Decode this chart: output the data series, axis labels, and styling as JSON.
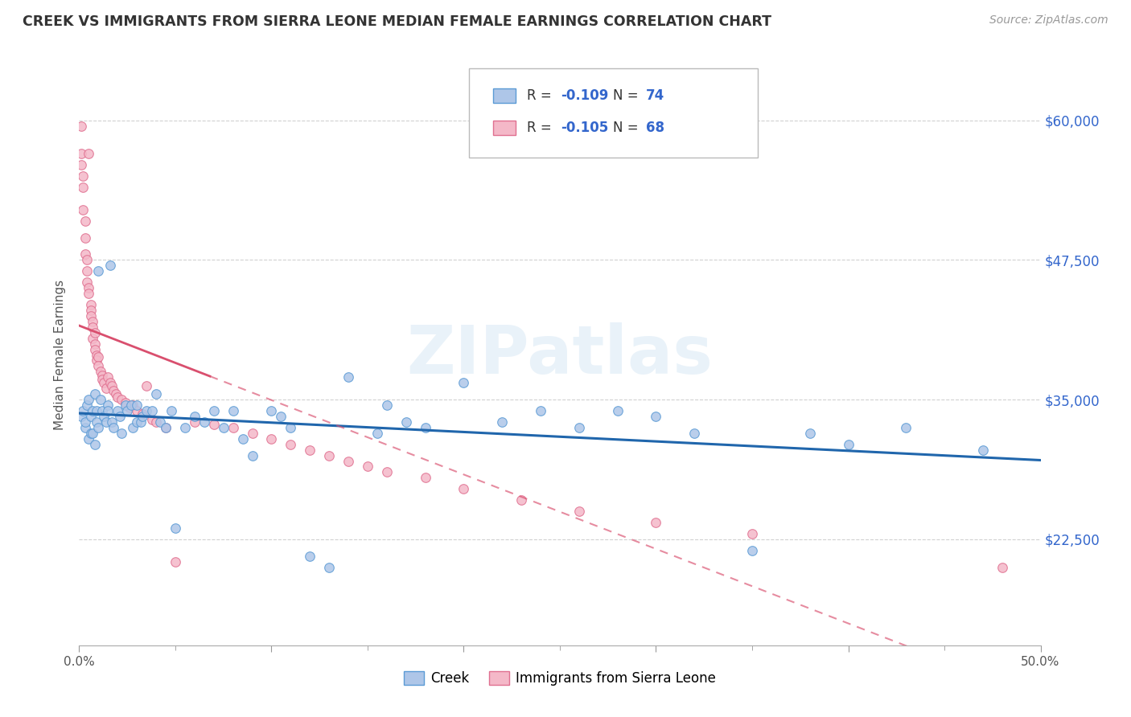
{
  "title": "CREEK VS IMMIGRANTS FROM SIERRA LEONE MEDIAN FEMALE EARNINGS CORRELATION CHART",
  "source": "Source: ZipAtlas.com",
  "ylabel_label": "Median Female Earnings",
  "ylabel_ticks": [
    "$22,500",
    "$35,000",
    "$47,500",
    "$60,000"
  ],
  "ytick_vals": [
    22500,
    35000,
    47500,
    60000
  ],
  "legend_labels": [
    "Creek",
    "Immigrants from Sierra Leone"
  ],
  "creek_color": "#aec6e8",
  "creek_edge_color": "#5b9bd5",
  "creek_line_color": "#2066ac",
  "sierra_color": "#f4b8c8",
  "sierra_edge_color": "#e07090",
  "sierra_line_color": "#d94f6e",
  "creek_R": "-0.109",
  "creek_N": "74",
  "sierra_R": "-0.105",
  "sierra_N": "68",
  "watermark": "ZIPatlas",
  "background_color": "#ffffff",
  "grid_color": "#cccccc",
  "title_color": "#333333",
  "right_axis_color": "#3366cc",
  "xlim": [
    0.0,
    0.5
  ],
  "ylim": [
    13000,
    65000
  ],
  "creek_x": [
    0.001,
    0.002,
    0.003,
    0.003,
    0.004,
    0.005,
    0.005,
    0.006,
    0.006,
    0.007,
    0.007,
    0.008,
    0.008,
    0.009,
    0.009,
    0.01,
    0.01,
    0.011,
    0.012,
    0.013,
    0.014,
    0.015,
    0.015,
    0.016,
    0.017,
    0.018,
    0.02,
    0.021,
    0.022,
    0.024,
    0.025,
    0.027,
    0.028,
    0.03,
    0.03,
    0.032,
    0.033,
    0.035,
    0.038,
    0.04,
    0.042,
    0.045,
    0.048,
    0.05,
    0.055,
    0.06,
    0.065,
    0.07,
    0.075,
    0.08,
    0.085,
    0.09,
    0.1,
    0.105,
    0.11,
    0.12,
    0.13,
    0.14,
    0.155,
    0.16,
    0.17,
    0.18,
    0.2,
    0.22,
    0.24,
    0.26,
    0.28,
    0.3,
    0.32,
    0.35,
    0.38,
    0.4,
    0.43,
    0.47
  ],
  "creek_y": [
    33500,
    34000,
    32500,
    33000,
    34500,
    31500,
    35000,
    32000,
    33500,
    32000,
    34000,
    31000,
    35500,
    33000,
    34000,
    32500,
    46500,
    35000,
    34000,
    33500,
    33000,
    34500,
    34000,
    47000,
    33000,
    32500,
    34000,
    33500,
    32000,
    34500,
    34000,
    34500,
    32500,
    33000,
    34500,
    33000,
    33500,
    34000,
    34000,
    35500,
    33000,
    32500,
    34000,
    23500,
    32500,
    33500,
    33000,
    34000,
    32500,
    34000,
    31500,
    30000,
    34000,
    33500,
    32500,
    21000,
    20000,
    37000,
    32000,
    34500,
    33000,
    32500,
    36500,
    33000,
    34000,
    32500,
    34000,
    33500,
    32000,
    21500,
    32000,
    31000,
    32500,
    30500
  ],
  "sierra_x": [
    0.001,
    0.001,
    0.001,
    0.002,
    0.002,
    0.002,
    0.003,
    0.003,
    0.003,
    0.004,
    0.004,
    0.004,
    0.005,
    0.005,
    0.005,
    0.006,
    0.006,
    0.006,
    0.007,
    0.007,
    0.007,
    0.008,
    0.008,
    0.008,
    0.009,
    0.009,
    0.01,
    0.01,
    0.011,
    0.012,
    0.012,
    0.013,
    0.014,
    0.015,
    0.016,
    0.017,
    0.018,
    0.019,
    0.02,
    0.022,
    0.024,
    0.026,
    0.028,
    0.03,
    0.033,
    0.035,
    0.038,
    0.04,
    0.045,
    0.05,
    0.06,
    0.07,
    0.08,
    0.09,
    0.1,
    0.11,
    0.12,
    0.13,
    0.14,
    0.15,
    0.16,
    0.18,
    0.2,
    0.23,
    0.26,
    0.3,
    0.35,
    0.48
  ],
  "sierra_y": [
    59500,
    57000,
    56000,
    55000,
    54000,
    52000,
    51000,
    49500,
    48000,
    47500,
    46500,
    45500,
    45000,
    44500,
    57000,
    43500,
    43000,
    42500,
    42000,
    41500,
    40500,
    41000,
    40000,
    39500,
    39000,
    38500,
    38800,
    38000,
    37500,
    37200,
    36800,
    36500,
    36000,
    37000,
    36500,
    36200,
    35800,
    35500,
    35200,
    35000,
    34700,
    34300,
    34500,
    34000,
    33700,
    36200,
    33200,
    33000,
    32500,
    20500,
    33000,
    32800,
    32500,
    32000,
    31500,
    31000,
    30500,
    30000,
    29500,
    29000,
    28500,
    28000,
    27000,
    26000,
    25000,
    24000,
    23000,
    20000
  ]
}
